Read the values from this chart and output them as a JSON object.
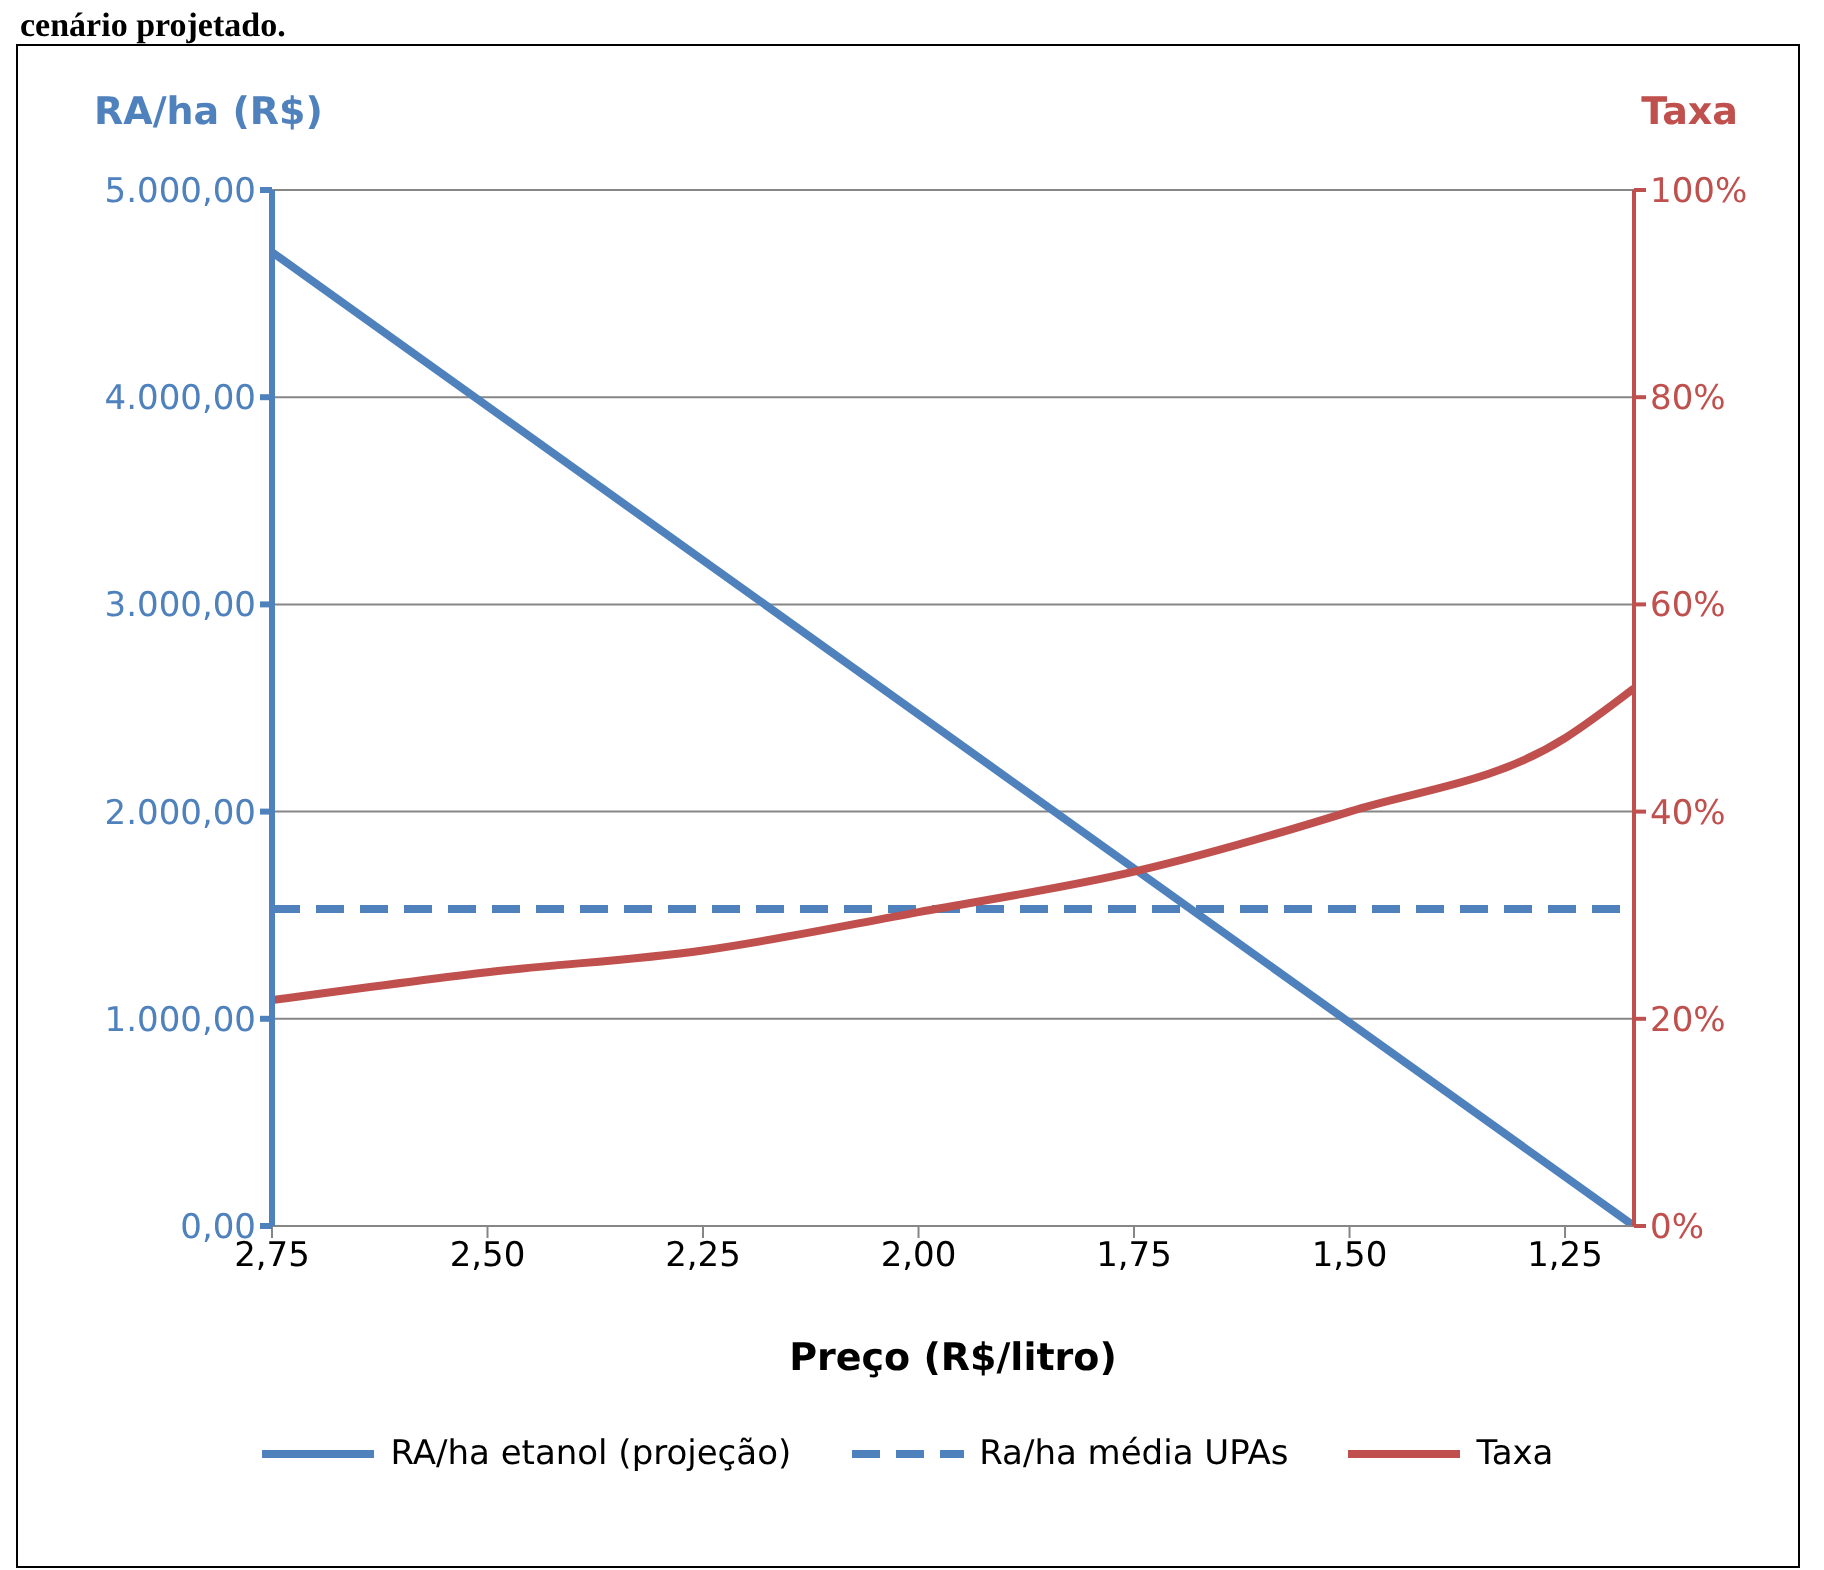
{
  "chart_data": {
    "type": "line",
    "title": "cenário projetado.",
    "xlabel": "Preço (R$/litro)",
    "ylabel": "RA/ha (R$)",
    "y2label": "Taxa",
    "xlim": [
      2.75,
      1.17
    ],
    "xticks": [
      {
        "value": 2.75,
        "label": "2,75"
      },
      {
        "value": 2.5,
        "label": "2,50"
      },
      {
        "value": 2.25,
        "label": "2,25"
      },
      {
        "value": 2,
        "label": "2,00"
      },
      {
        "value": 1.75,
        "label": "1,75"
      },
      {
        "value": 1.5,
        "label": "1,50"
      },
      {
        "value": 1.25,
        "label": "1,25"
      }
    ],
    "ylim": [
      0,
      5000
    ],
    "yticks": [
      {
        "value": 0,
        "label": "0,00"
      },
      {
        "value": 1000,
        "label": "1.000,00"
      },
      {
        "value": 2000,
        "label": "2.000,00"
      },
      {
        "value": 3000,
        "label": "3.000,00"
      },
      {
        "value": 4000,
        "label": "4.000,00"
      },
      {
        "value": 5000,
        "label": "5.000,00"
      }
    ],
    "y2lim": [
      0,
      100
    ],
    "y2ticks": [
      {
        "value": 0,
        "label": "0%"
      },
      {
        "value": 20,
        "label": "20%"
      },
      {
        "value": 40,
        "label": "40%"
      },
      {
        "value": 60,
        "label": "60%"
      },
      {
        "value": 80,
        "label": "80%"
      },
      {
        "value": 100,
        "label": "100%"
      }
    ],
    "grid": "y",
    "legend": "bottom",
    "marker": "none",
    "series": [
      {
        "name": "RA/ha etanol (projeção)",
        "color": "#4f81bd",
        "x": [
          2.75,
          1.17
        ],
        "values": [
          4700,
          0
        ],
        "line_style": "solid"
      },
      {
        "name": "Ra/ha média UPAs",
        "color": "#4f81bd",
        "x": [
          2.75,
          1.17
        ],
        "values": [
          1530,
          1530
        ],
        "line_style": "dashed"
      },
      {
        "name": "Taxa",
        "color": "#c0504d",
        "axis": "y2",
        "x": [
          2.75,
          2.5,
          2.25,
          2,
          1.75,
          1.5,
          1.25,
          1.17
        ],
        "values": [
          21.8,
          24.5,
          26.6,
          30.3,
          34.2,
          40,
          47.1,
          51.9
        ],
        "line_style": "solid"
      }
    ]
  }
}
